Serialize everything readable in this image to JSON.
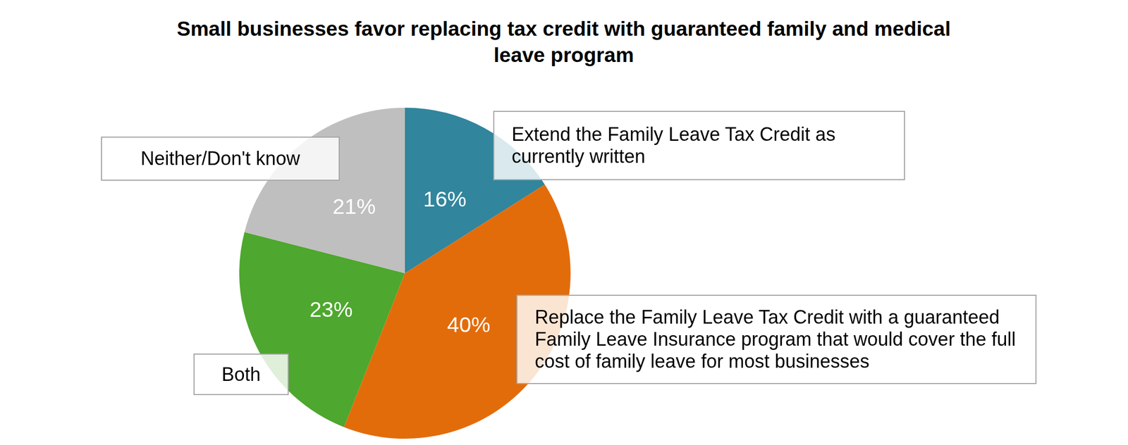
{
  "chart_data": {
    "type": "pie",
    "title": "Small businesses favor replacing tax credit with guaranteed family and medical leave program",
    "categories": [
      "Extend the Family Leave Tax Credit as currently written",
      "Replace the Family Leave Tax Credit with a guaranteed Family Leave Insurance program that would cover the full cost of family leave for most businesses",
      "Both",
      "Neither/Don't know"
    ],
    "values": [
      16,
      40,
      23,
      21
    ],
    "value_labels": [
      "16%",
      "40%",
      "23%",
      "21%"
    ],
    "colors": [
      "#31859c",
      "#e36c0a",
      "#4ea72e",
      "#bfbfbf"
    ],
    "data_labels": true
  }
}
